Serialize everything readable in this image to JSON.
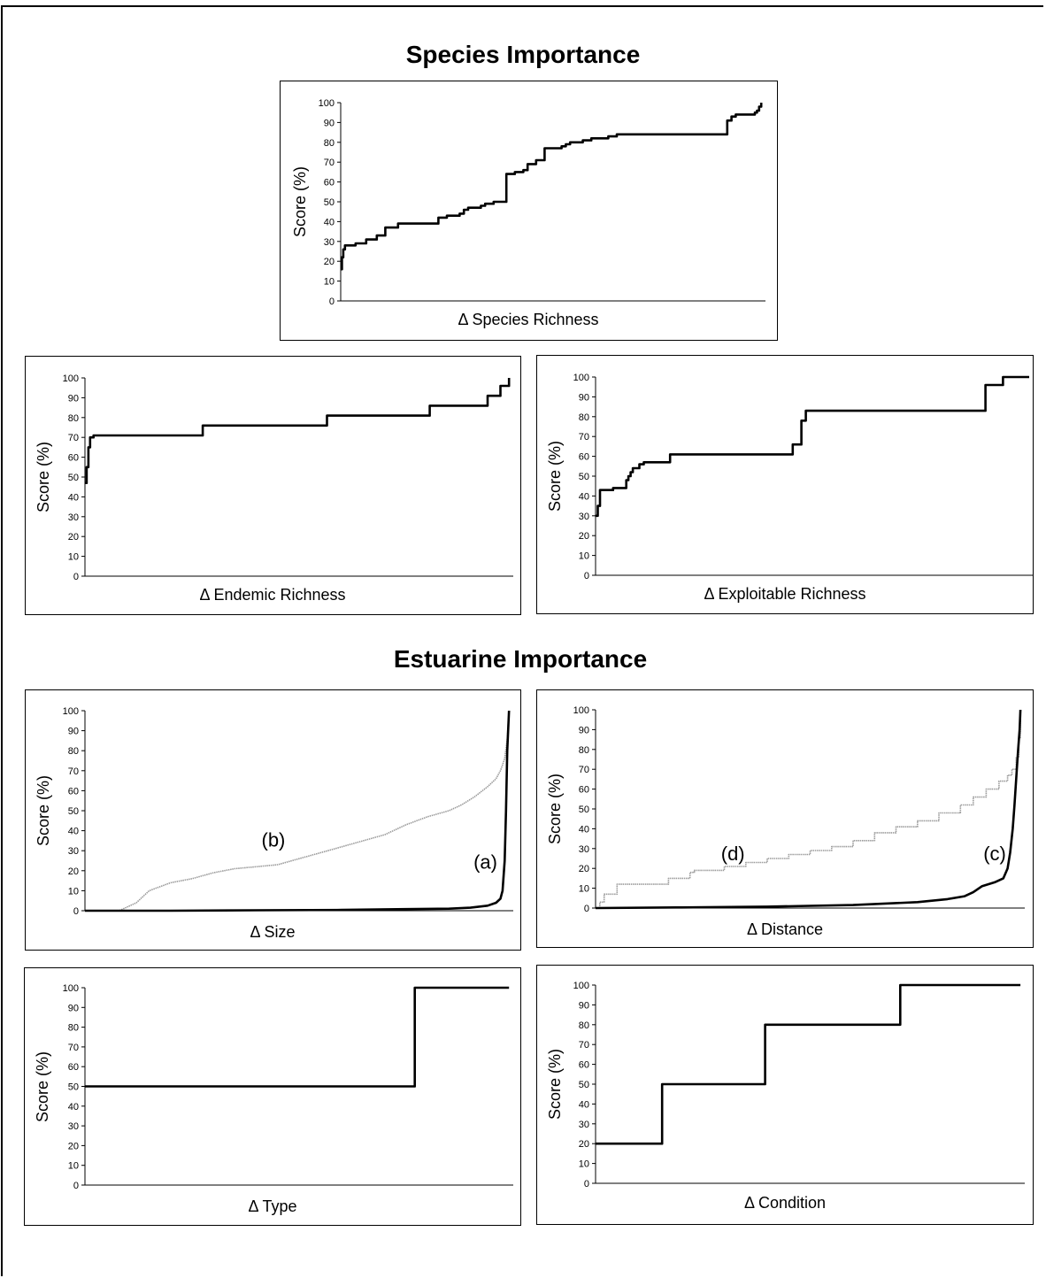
{
  "sections": {
    "species_title": "Species Importance",
    "estuarine_title": "Estuarine Importance"
  },
  "chart_data": [
    {
      "id": "species-richness",
      "type": "line",
      "xlabel": "Δ Species Richness",
      "ylabel": "Score (%)",
      "ylim": [
        0,
        100
      ],
      "yticks": [
        0,
        10,
        20,
        30,
        40,
        50,
        60,
        70,
        80,
        90,
        100
      ],
      "xlim": [
        0,
        100
      ],
      "series": [
        {
          "style": "black",
          "step": true,
          "x": [
            0,
            0.3,
            0.6,
            1,
            3.5,
            6,
            8.5,
            10.5,
            13.5,
            18,
            23,
            25,
            28,
            29,
            30,
            33,
            34,
            36,
            39,
            40,
            41,
            43,
            44,
            46,
            48,
            52,
            53,
            54,
            57,
            59,
            60,
            63,
            64,
            65,
            68,
            70,
            75,
            91,
            92,
            93,
            97.5,
            98,
            98.5,
            99
          ],
          "y": [
            16,
            22,
            26,
            28,
            29,
            31,
            33,
            37,
            39,
            39,
            42,
            43,
            44,
            46,
            47,
            48,
            49,
            50,
            64,
            64,
            65,
            66,
            69,
            71,
            77,
            78,
            79,
            80,
            81,
            82,
            82,
            83,
            83,
            84,
            84,
            84,
            84,
            91,
            93,
            94,
            95,
            96,
            98,
            100
          ]
        }
      ]
    },
    {
      "id": "endemic-richness",
      "type": "line",
      "xlabel": "Δ Endemic Richness",
      "ylabel": "Score (%)",
      "ylim": [
        0,
        100
      ],
      "yticks": [
        0,
        10,
        20,
        30,
        40,
        50,
        60,
        70,
        80,
        90,
        100
      ],
      "xlim": [
        0,
        100
      ],
      "series": [
        {
          "style": "black",
          "step": true,
          "x": [
            0,
            0.4,
            0.8,
            1.2,
            2,
            27,
            27.5,
            56,
            56.5,
            80,
            80.5,
            93.5,
            94,
            96.5,
            97,
            99
          ],
          "y": [
            47,
            55,
            65,
            70,
            71,
            71,
            76,
            76,
            81,
            81,
            86,
            86,
            91,
            91,
            96,
            100
          ]
        }
      ]
    },
    {
      "id": "exploitable-richness",
      "type": "line",
      "xlabel": "Δ Exploitable Richness",
      "ylabel": "Score (%)",
      "ylim": [
        0,
        100
      ],
      "yticks": [
        0,
        10,
        20,
        30,
        40,
        50,
        60,
        70,
        80,
        90,
        100
      ],
      "xlim": [
        0,
        100
      ],
      "series": [
        {
          "style": "black",
          "step": true,
          "x": [
            0,
            0.5,
            1,
            4,
            7,
            7.5,
            8,
            8.5,
            10,
            11,
            17,
            40,
            45,
            47,
            48,
            88,
            89,
            92,
            93,
            99
          ],
          "y": [
            30,
            35,
            43,
            44,
            48,
            50,
            52,
            54,
            56,
            57,
            61,
            61,
            66,
            78,
            83,
            83,
            96,
            96,
            100,
            100
          ]
        }
      ]
    },
    {
      "id": "size",
      "type": "line",
      "xlabel": "Δ Size",
      "ylabel": "Score (%)",
      "ylim": [
        0,
        100
      ],
      "yticks": [
        0,
        10,
        20,
        30,
        40,
        50,
        60,
        70,
        80,
        90,
        100
      ],
      "xlim": [
        0,
        100
      ],
      "annotations": [
        {
          "text": "(b)",
          "x": 44,
          "y": 32
        },
        {
          "text": "(a)",
          "x": 93.5,
          "y": 21
        }
      ],
      "series": [
        {
          "name": "(a)",
          "style": "black",
          "step": false,
          "x": [
            0,
            20,
            40,
            60,
            75,
            85,
            90,
            94,
            96,
            97,
            97.5,
            98,
            98.3,
            98.6,
            99
          ],
          "y": [
            0,
            0,
            0.2,
            0.4,
            0.8,
            1,
            1.5,
            2.5,
            4,
            6,
            10,
            25,
            50,
            80,
            100
          ]
        },
        {
          "name": "(b)",
          "style": "grey",
          "step": false,
          "x": [
            0,
            8,
            12,
            15,
            20,
            25,
            30,
            35,
            40,
            45,
            50,
            55,
            60,
            65,
            70,
            75,
            80,
            85,
            88,
            91,
            94,
            96,
            97,
            98,
            98.6,
            99
          ],
          "y": [
            0,
            0,
            4,
            10,
            14,
            16,
            19,
            21,
            22,
            23,
            26,
            29,
            32,
            35,
            38,
            43,
            47,
            50,
            53,
            57,
            62,
            66,
            70,
            76,
            86,
            100
          ]
        }
      ]
    },
    {
      "id": "distance",
      "type": "line",
      "xlabel": "Δ Distance",
      "ylabel": "Score (%)",
      "ylim": [
        0,
        100
      ],
      "yticks": [
        0,
        10,
        20,
        30,
        40,
        50,
        60,
        70,
        80,
        90,
        100
      ],
      "xlim": [
        0,
        100
      ],
      "annotations": [
        {
          "text": "(d)",
          "x": 32,
          "y": 24
        },
        {
          "text": "(c)",
          "x": 93,
          "y": 24
        }
      ],
      "series": [
        {
          "name": "(c)",
          "style": "black",
          "step": false,
          "x": [
            0,
            20,
            40,
            60,
            75,
            82,
            86,
            88,
            90,
            93,
            95,
            96,
            96.6,
            97.2,
            97.6,
            98,
            98.4,
            98.8,
            99
          ],
          "y": [
            0,
            0.3,
            0.7,
            1.5,
            3,
            4.5,
            6,
            8,
            11,
            13,
            15,
            20,
            28,
            40,
            52,
            65,
            78,
            90,
            100
          ]
        },
        {
          "name": "(d)",
          "style": "grey",
          "step": true,
          "x": [
            0,
            1,
            2,
            5,
            16,
            17,
            22,
            23,
            30,
            35,
            40,
            45,
            50,
            55,
            60,
            65,
            70,
            75,
            80,
            85,
            88,
            91,
            94,
            96,
            97,
            98,
            98.6,
            99
          ],
          "y": [
            0,
            3,
            7,
            12,
            12,
            15,
            18,
            19,
            21,
            23,
            25,
            27,
            29,
            31,
            34,
            38,
            41,
            44,
            48,
            52,
            56,
            60,
            64,
            67,
            70,
            76,
            86,
            100
          ]
        }
      ]
    },
    {
      "id": "type",
      "type": "line",
      "xlabel": "Δ Type",
      "ylabel": "Score (%)",
      "ylim": [
        0,
        100
      ],
      "yticks": [
        0,
        10,
        20,
        30,
        40,
        50,
        60,
        70,
        80,
        90,
        100
      ],
      "xlim": [
        0,
        100
      ],
      "series": [
        {
          "style": "black",
          "step": true,
          "x": [
            0,
            76.5,
            77,
            99
          ],
          "y": [
            50,
            50,
            100,
            100
          ]
        }
      ]
    },
    {
      "id": "condition",
      "type": "line",
      "xlabel": "Δ Condition",
      "ylabel": "Score (%)",
      "ylim": [
        0,
        100
      ],
      "yticks": [
        0,
        10,
        20,
        30,
        40,
        50,
        60,
        70,
        80,
        90,
        100
      ],
      "xlim": [
        0,
        100
      ],
      "series": [
        {
          "style": "black",
          "step": true,
          "x": [
            0,
            15,
            15.5,
            39,
            39.5,
            70.5,
            71,
            99
          ],
          "y": [
            20,
            20,
            50,
            50,
            80,
            80,
            100,
            100
          ]
        }
      ]
    }
  ]
}
